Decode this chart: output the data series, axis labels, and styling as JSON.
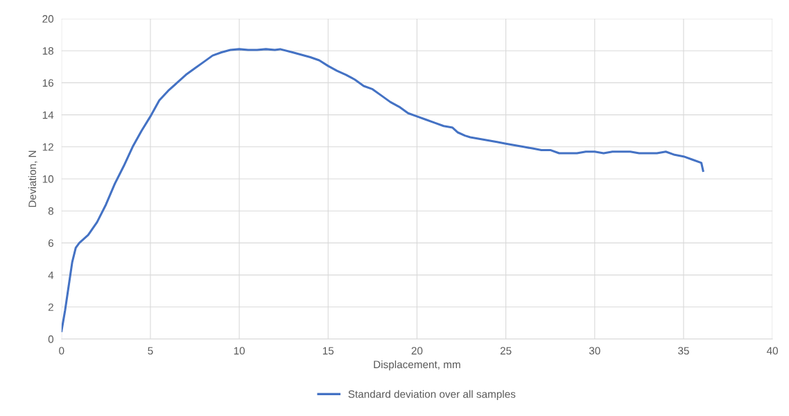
{
  "chart_data": {
    "type": "line",
    "xlabel": "Displacement, mm",
    "ylabel": "Deviation, N",
    "xlim": [
      0,
      40
    ],
    "xticks": [
      0,
      5,
      10,
      15,
      20,
      25,
      30,
      35,
      40
    ],
    "ylim": [
      0,
      20
    ],
    "yticks": [
      0,
      2,
      4,
      6,
      8,
      10,
      12,
      14,
      16,
      18,
      20
    ],
    "grid": true,
    "legend": "bottom",
    "marker": "none",
    "line_style": "solid",
    "x": [
      0,
      0.2,
      0.4,
      0.6,
      0.8,
      1.0,
      1.5,
      2,
      2.5,
      3,
      3.5,
      4,
      4.5,
      5,
      5.5,
      6,
      6.5,
      7,
      7.5,
      8,
      8.5,
      9,
      9.5,
      10,
      10.5,
      11,
      11.5,
      12,
      12.3,
      13,
      13.5,
      14,
      14.5,
      15,
      15.5,
      16,
      16.5,
      17,
      17.5,
      18,
      18.5,
      19,
      19.5,
      20,
      20.5,
      21,
      21.5,
      22,
      22.3,
      22.7,
      23,
      23.5,
      24,
      24.5,
      25,
      25.5,
      26,
      26.5,
      27,
      27.5,
      28,
      28.5,
      29,
      29.5,
      30,
      30.5,
      31,
      31.5,
      32,
      32.5,
      33,
      33.5,
      34,
      34.5,
      35,
      35.5,
      36,
      36.1
    ],
    "series": [
      {
        "name": "Standard deviation over all samples",
        "color": "#4472c4",
        "values": [
          0.5,
          1.8,
          3.3,
          4.8,
          5.7,
          6.0,
          6.5,
          7.3,
          8.4,
          9.7,
          10.8,
          12.0,
          13.0,
          13.9,
          14.9,
          15.5,
          16.0,
          16.5,
          16.9,
          17.3,
          17.7,
          17.9,
          18.05,
          18.1,
          18.05,
          18.05,
          18.1,
          18.05,
          18.1,
          17.9,
          17.75,
          17.6,
          17.4,
          17.05,
          16.75,
          16.5,
          16.2,
          15.8,
          15.6,
          15.2,
          14.8,
          14.5,
          14.1,
          13.9,
          13.7,
          13.5,
          13.3,
          13.2,
          12.9,
          12.7,
          12.6,
          12.5,
          12.4,
          12.3,
          12.2,
          12.1,
          12.0,
          11.9,
          11.8,
          11.8,
          11.6,
          11.6,
          11.6,
          11.7,
          11.7,
          11.6,
          11.7,
          11.7,
          11.7,
          11.6,
          11.6,
          11.6,
          11.7,
          11.5,
          11.4,
          11.2,
          11.0,
          10.5
        ]
      }
    ]
  }
}
